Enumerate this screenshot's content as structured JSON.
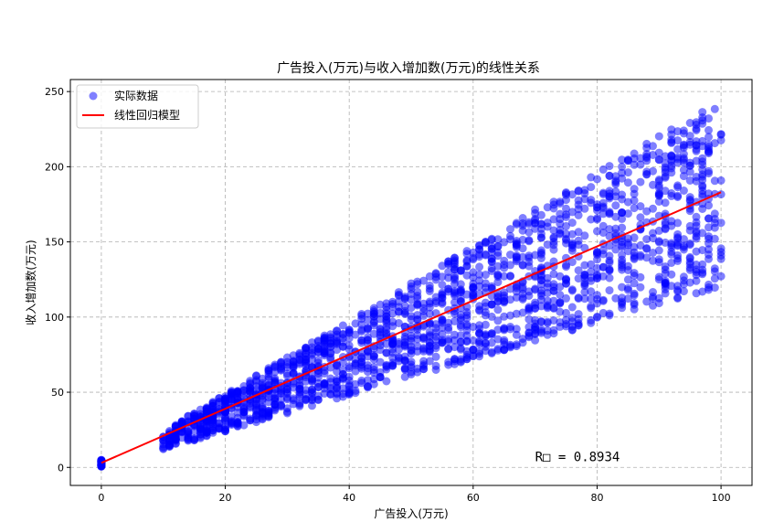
{
  "chart_data": {
    "type": "scatter",
    "title": "广告投入(万元)与收入增加数(万元)的线性关系",
    "xlabel": "广告投入(万元)",
    "ylabel": "收入增加数(万元)",
    "xlim": [
      -5,
      105
    ],
    "ylim": [
      -12,
      258
    ],
    "xticks": [
      "0",
      "20",
      "40",
      "60",
      "80",
      "100"
    ],
    "xtick_values": [
      0,
      20,
      40,
      60,
      80,
      100
    ],
    "yticks": [
      "0",
      "50",
      "100",
      "150",
      "200",
      "250"
    ],
    "ytick_values": [
      0,
      50,
      100,
      150,
      200,
      250
    ],
    "grid": true,
    "grid_style": "dashed",
    "legend_position": "top-left",
    "series": [
      {
        "name": "实际数据",
        "kind": "scatter",
        "color": "#0000ff",
        "alpha": 0.5,
        "description": "approx. 2000 points; cluster at x=0 with y 0-5; for x from 10 to 100, y lies roughly between 1.2x and 2.45x",
        "x_range": [
          10,
          100
        ],
        "y_ratio_range": [
          1.2,
          2.45
        ],
        "zero_cluster_y": [
          0,
          5
        ]
      },
      {
        "name": "线性回归模型",
        "kind": "line",
        "color": "#ff0000",
        "x": [
          0,
          100
        ],
        "y": [
          3,
          183
        ]
      }
    ],
    "annotations": [
      {
        "text": "R□ = 0.8934",
        "x": 70,
        "y": 4
      }
    ]
  }
}
